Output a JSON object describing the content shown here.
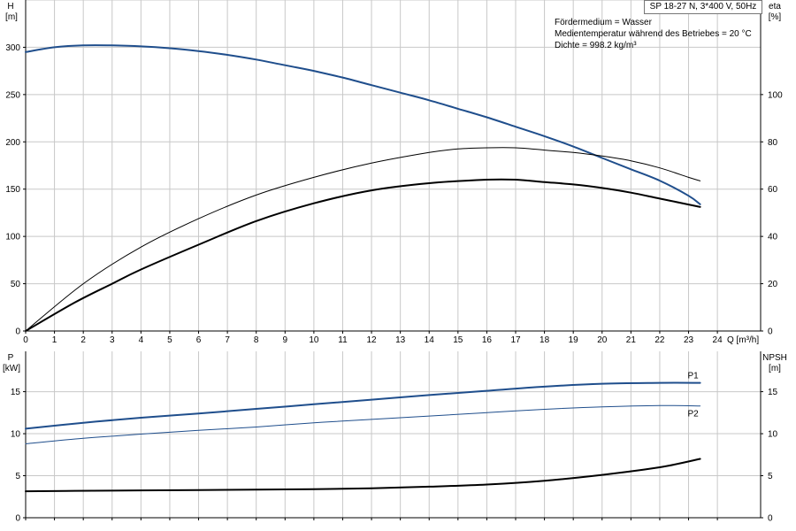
{
  "header": {
    "pump_label": "SP 18-27 N, 3*400 V, 50Hz",
    "conditions": [
      "Fördermedium = Wasser",
      "Medientemperatur während des Betriebes = 20 °C",
      "Dichte = 998.2 kg/m³"
    ]
  },
  "chart_data": [
    {
      "type": "line",
      "panel": "upper",
      "x_axis": {
        "label": "Q [m³/h]",
        "range": [
          0,
          25.5
        ],
        "ticks": [
          0,
          1,
          2,
          3,
          4,
          5,
          6,
          7,
          8,
          9,
          10,
          11,
          12,
          13,
          14,
          15,
          16,
          17,
          18,
          19,
          20,
          21,
          22,
          23,
          24
        ]
      },
      "left_axis": {
        "label_top": "H",
        "label_unit": "[m]",
        "range": [
          0,
          350
        ],
        "ticks": [
          0,
          50,
          100,
          150,
          200,
          250,
          300
        ]
      },
      "right_axis": {
        "label_top": "eta",
        "label_unit": "[%]",
        "range": [
          0,
          140
        ],
        "ticks": [
          0,
          20,
          40,
          60,
          80,
          100
        ]
      },
      "grid": true,
      "series": [
        {
          "axis": "left",
          "color": "#1f4e8c",
          "width": 2,
          "points": [
            [
              0,
              295
            ],
            [
              1,
              300
            ],
            [
              2,
              302
            ],
            [
              3,
              302
            ],
            [
              4,
              301
            ],
            [
              5,
              299
            ],
            [
              6,
              296
            ],
            [
              7,
              292
            ],
            [
              8,
              287
            ],
            [
              9,
              281
            ],
            [
              10,
              275
            ],
            [
              11,
              268
            ],
            [
              12,
              260
            ],
            [
              13,
              252
            ],
            [
              14,
              244
            ],
            [
              15,
              235
            ],
            [
              16,
              226
            ],
            [
              17,
              216
            ],
            [
              18,
              206
            ],
            [
              19,
              195
            ],
            [
              20,
              183
            ],
            [
              21,
              171
            ],
            [
              22,
              159
            ],
            [
              23,
              143
            ],
            [
              23.4,
              134
            ]
          ]
        },
        {
          "axis": "right",
          "color": "#000000",
          "width": 1,
          "points": [
            [
              0,
              0
            ],
            [
              2,
              20
            ],
            [
              4,
              35.5
            ],
            [
              6,
              47.5
            ],
            [
              8,
              57.5
            ],
            [
              10,
              65
            ],
            [
              12,
              71
            ],
            [
              14,
              75.5
            ],
            [
              15,
              77
            ],
            [
              16,
              77.5
            ],
            [
              17,
              77.5
            ],
            [
              18,
              76.5
            ],
            [
              19,
              75.5
            ],
            [
              20,
              74
            ],
            [
              21,
              72
            ],
            [
              22,
              69
            ],
            [
              23,
              65
            ],
            [
              23.4,
              63.5
            ]
          ]
        },
        {
          "axis": "right",
          "color": "#000000",
          "width": 2,
          "points": [
            [
              0,
              0
            ],
            [
              1.7,
              12
            ],
            [
              3,
              20
            ],
            [
              4,
              26
            ],
            [
              6,
              36.5
            ],
            [
              8,
              46.5
            ],
            [
              10,
              54
            ],
            [
              12,
              59.5
            ],
            [
              14,
              62.5
            ],
            [
              16,
              64
            ],
            [
              17,
              64
            ],
            [
              18,
              63
            ],
            [
              19,
              62
            ],
            [
              20,
              60.5
            ],
            [
              21,
              58.5
            ],
            [
              22,
              56
            ],
            [
              23,
              53.5
            ],
            [
              23.4,
              52.5
            ]
          ]
        }
      ]
    },
    {
      "type": "line",
      "panel": "lower",
      "x_axis": {
        "range": [
          0,
          25.5
        ]
      },
      "left_axis": {
        "label_top": "P",
        "label_unit": "[kW]",
        "range": [
          0,
          19.8
        ],
        "ticks": [
          0,
          5,
          10,
          15
        ]
      },
      "right_axis": {
        "label_top": "NPSH",
        "label_unit": "[m]",
        "range": [
          0,
          19.8
        ],
        "ticks": [
          0,
          5,
          10,
          15
        ]
      },
      "grid": true,
      "series": [
        {
          "name": "P1",
          "axis": "left",
          "color": "#1f4e8c",
          "width": 2,
          "points": [
            [
              0,
              10.6
            ],
            [
              2,
              11.3
            ],
            [
              4,
              11.9
            ],
            [
              6,
              12.4
            ],
            [
              8,
              12.95
            ],
            [
              10,
              13.5
            ],
            [
              12,
              14.05
            ],
            [
              14,
              14.6
            ],
            [
              16,
              15.1
            ],
            [
              18,
              15.6
            ],
            [
              20,
              15.95
            ],
            [
              22,
              16.05
            ],
            [
              23.4,
              16.05
            ]
          ]
        },
        {
          "name": "P2",
          "axis": "left",
          "color": "#1f4e8c",
          "width": 1,
          "points": [
            [
              0,
              8.8
            ],
            [
              2,
              9.45
            ],
            [
              4,
              9.95
            ],
            [
              6,
              10.4
            ],
            [
              8,
              10.8
            ],
            [
              10,
              11.3
            ],
            [
              12,
              11.7
            ],
            [
              14,
              12.1
            ],
            [
              16,
              12.5
            ],
            [
              18,
              12.9
            ],
            [
              20,
              13.2
            ],
            [
              22,
              13.35
            ],
            [
              23.4,
              13.3
            ]
          ]
        },
        {
          "axis": "right",
          "color": "#000000",
          "width": 2,
          "points": [
            [
              0,
              3.15
            ],
            [
              1.7,
              3.2
            ],
            [
              4,
              3.25
            ],
            [
              6,
              3.3
            ],
            [
              8,
              3.35
            ],
            [
              10,
              3.4
            ],
            [
              12,
              3.5
            ],
            [
              14,
              3.7
            ],
            [
              16,
              3.95
            ],
            [
              18,
              4.4
            ],
            [
              20,
              5.1
            ],
            [
              22,
              6.0
            ],
            [
              23.4,
              7.0
            ]
          ]
        }
      ]
    }
  ]
}
